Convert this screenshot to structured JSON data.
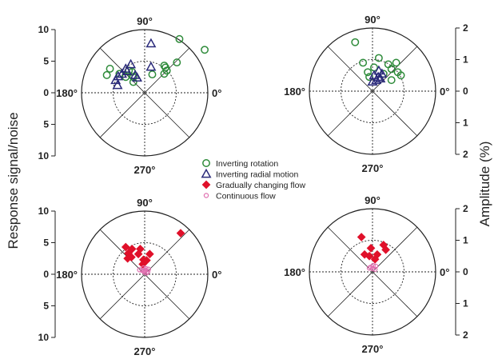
{
  "y_axis_title": "Response signal/noise",
  "right_axis_title": "Amplitude (%)",
  "colors": {
    "rotation": "#2e8b3a",
    "radial": "#2a2a7a",
    "gradual": "#e0102a",
    "continuous": "#e070b0",
    "axis": "#222222"
  },
  "legend": {
    "items": [
      {
        "label": "Inverting rotation",
        "marker": "circle-open",
        "color": "#2e8b3a"
      },
      {
        "label": "Inverting radial motion",
        "marker": "triangle-open",
        "color": "#2a2a7a"
      },
      {
        "label": "Gradually changing flow",
        "marker": "diamond-filled",
        "color": "#e0102a"
      },
      {
        "label": "Continuous flow",
        "marker": "circle-open-small",
        "color": "#e070b0"
      }
    ]
  },
  "chart_data": [
    {
      "type": "scatter",
      "coordinate_system": "polar",
      "angle_labels": [
        "90°",
        "180°",
        "0°",
        "270°"
      ],
      "radial_axis": {
        "side": "left",
        "ticks": [
          "10",
          "5",
          "0",
          "5",
          "10"
        ],
        "max": 10
      },
      "series": [
        {
          "name": "Inverting rotation",
          "marker": "circle-open",
          "points": [
            [
              6.8,
              9.5
            ],
            [
              8.5,
              5.5
            ],
            [
              4.8,
              5.1
            ],
            [
              3.5,
              3.5
            ],
            [
              4.0,
              3.3
            ],
            [
              4.3,
              3.1
            ],
            [
              3.0,
              3.1
            ],
            [
              2.9,
              1.2
            ],
            [
              2.5,
              -1.8
            ],
            [
              3.5,
              -2.5
            ],
            [
              3.0,
              -4.0
            ],
            [
              3.8,
              -5.5
            ],
            [
              2.8,
              -6.0
            ],
            [
              2.5,
              -3.0
            ],
            [
              1.7,
              -1.8
            ],
            [
              3.3,
              -2.0
            ]
          ]
        },
        {
          "name": "Inverting radial motion",
          "marker": "triangle-open",
          "points": [
            [
              7.8,
              1.0
            ],
            [
              4.5,
              -2.2
            ],
            [
              3.8,
              -3.0
            ],
            [
              3.0,
              -3.6
            ],
            [
              2.6,
              -4.2
            ],
            [
              2.0,
              -4.6
            ],
            [
              1.2,
              -4.3
            ],
            [
              2.8,
              -1.5
            ],
            [
              2.4,
              -1.2
            ],
            [
              3.4,
              -2.8
            ],
            [
              4.1,
              1.0
            ]
          ]
        }
      ]
    },
    {
      "type": "scatter",
      "coordinate_system": "polar",
      "angle_labels": [
        "90°",
        "180°",
        "0°",
        "270°"
      ],
      "radial_axis": {
        "side": "right",
        "ticks": [
          "2",
          "1",
          "0",
          "1",
          "2"
        ],
        "max": 2
      },
      "series": [
        {
          "name": "Inverting rotation",
          "marker": "circle-open",
          "points": [
            [
              1.55,
              -0.55
            ],
            [
              0.9,
              -0.3
            ],
            [
              1.05,
              0.2
            ],
            [
              0.9,
              0.75
            ],
            [
              0.7,
              0.6
            ],
            [
              0.5,
              0.9
            ],
            [
              0.85,
              0.5
            ],
            [
              0.75,
              0.05
            ],
            [
              0.6,
              -0.15
            ],
            [
              0.45,
              -0.1
            ],
            [
              0.55,
              0.35
            ],
            [
              0.6,
              0.8
            ],
            [
              0.35,
              0.6
            ]
          ]
        },
        {
          "name": "Inverting radial motion",
          "marker": "triangle-open",
          "points": [
            [
              0.65,
              0.2
            ],
            [
              0.5,
              0.05
            ],
            [
              0.45,
              0.18
            ],
            [
              0.35,
              0.12
            ],
            [
              0.55,
              0.3
            ],
            [
              0.3,
              0.0
            ],
            [
              0.4,
              0.25
            ]
          ]
        }
      ]
    },
    {
      "type": "scatter",
      "coordinate_system": "polar",
      "angle_labels": [
        "90°",
        "180°",
        "0°",
        "270°"
      ],
      "radial_axis": {
        "side": "left",
        "ticks": [
          "10",
          "5",
          "0",
          "5",
          "10"
        ],
        "max": 10
      },
      "series": [
        {
          "name": "Gradually changing flow",
          "marker": "diamond-filled",
          "points": [
            [
              6.5,
              5.7
            ],
            [
              4.0,
              -0.7
            ],
            [
              3.2,
              -1.0
            ],
            [
              4.0,
              -2.0
            ],
            [
              4.3,
              -3.0
            ],
            [
              3.3,
              -2.6
            ],
            [
              2.7,
              -2.1
            ],
            [
              2.5,
              -2.7
            ],
            [
              2.3,
              -0.2
            ],
            [
              1.6,
              -0.3
            ],
            [
              2.2,
              0.3
            ],
            [
              3.2,
              0.8
            ]
          ]
        },
        {
          "name": "Continuous flow",
          "marker": "circle-open-small",
          "points": [
            [
              0.5,
              -0.1
            ],
            [
              0.9,
              0.2
            ],
            [
              0.3,
              0.0
            ],
            [
              0.6,
              -0.4
            ],
            [
              0.8,
              0.6
            ],
            [
              0.2,
              0.3
            ],
            [
              0.7,
              -0.8
            ],
            [
              1.0,
              -0.2
            ],
            [
              0.4,
              0.5
            ],
            [
              0.6,
              0.1
            ]
          ]
        }
      ]
    },
    {
      "type": "scatter",
      "coordinate_system": "polar",
      "angle_labels": [
        "90°",
        "180°",
        "0°",
        "270°"
      ],
      "radial_axis": {
        "side": "right",
        "ticks": [
          "2",
          "1",
          "0",
          "1",
          "2"
        ],
        "max": 2
      },
      "series": [
        {
          "name": "Gradually changing flow",
          "marker": "diamond-filled",
          "points": [
            [
              1.1,
              -0.35
            ],
            [
              0.85,
              0.35
            ],
            [
              0.7,
              0.42
            ],
            [
              0.55,
              0.15
            ],
            [
              0.5,
              -0.1
            ],
            [
              0.55,
              -0.25
            ],
            [
              0.75,
              -0.05
            ],
            [
              0.4,
              0.08
            ]
          ]
        },
        {
          "name": "Continuous flow",
          "marker": "circle-open-small",
          "points": [
            [
              0.1,
              0.0
            ],
            [
              0.15,
              -0.05
            ],
            [
              0.08,
              0.08
            ],
            [
              0.2,
              0.02
            ],
            [
              0.12,
              -0.1
            ],
            [
              0.18,
              0.1
            ]
          ]
        }
      ]
    }
  ]
}
